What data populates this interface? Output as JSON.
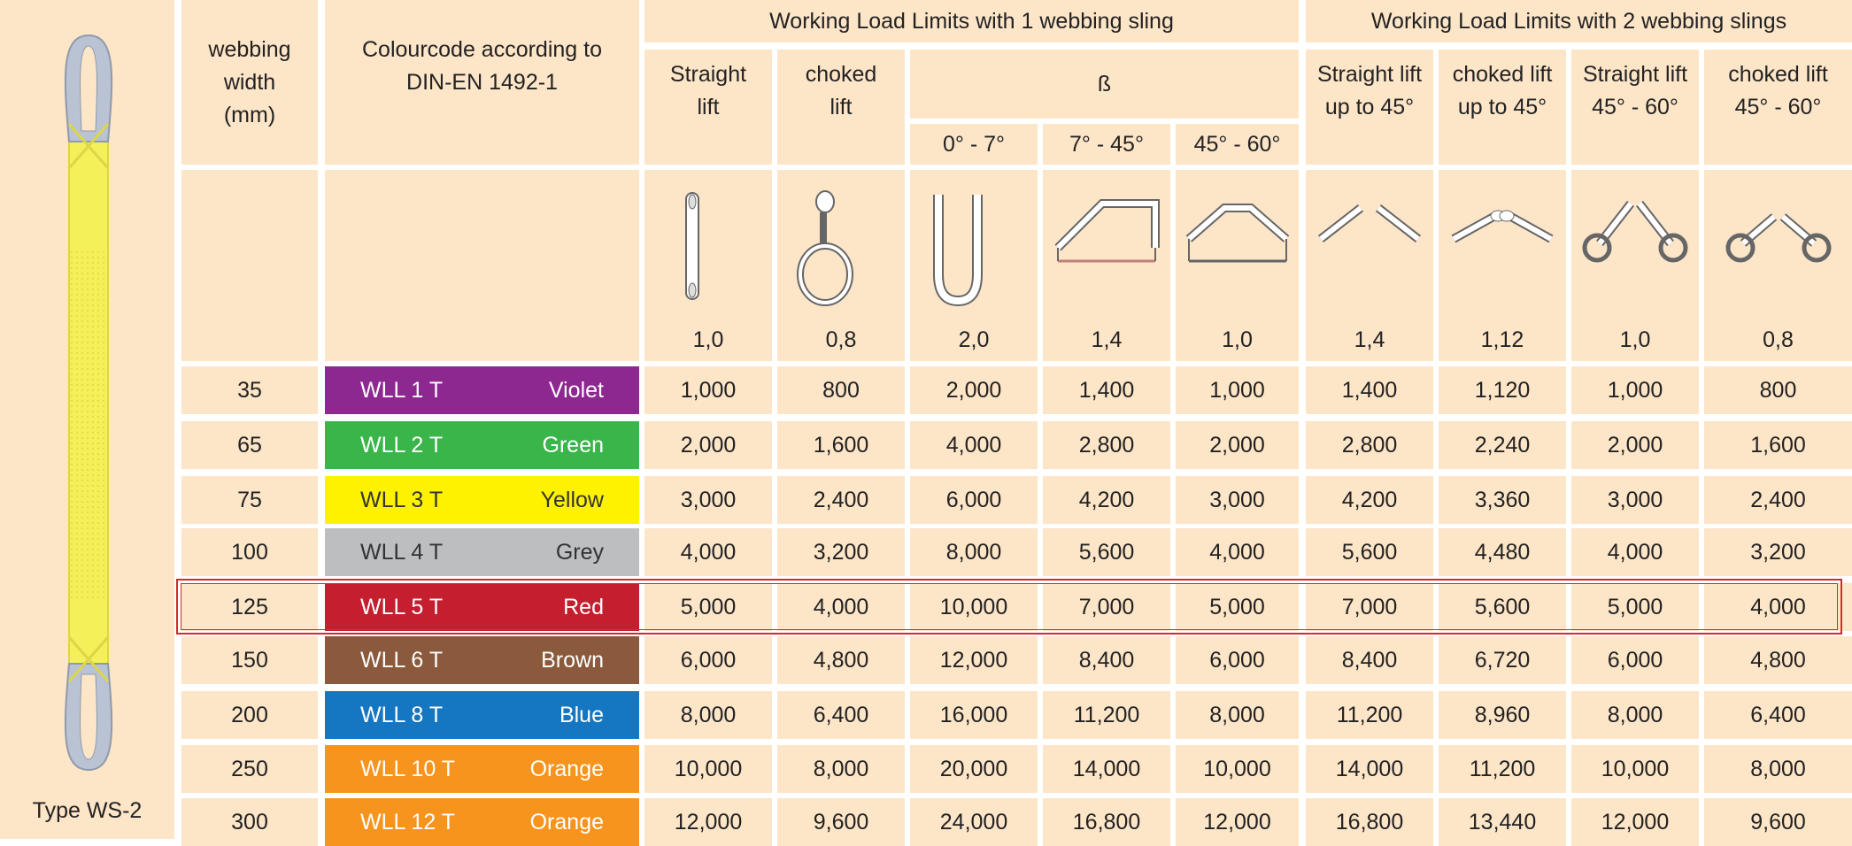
{
  "product": {
    "type_label": "Type WS-2",
    "sling_color": "#f4f05a",
    "sling_eye_color": "#b9c3d3"
  },
  "headers": {
    "webbing_width": "webbing width (mm)",
    "webbing_width_lines": [
      "webbing",
      "width",
      "(mm)"
    ],
    "colourcode_lines": [
      "Colourcode according to",
      "DIN-EN 1492-1"
    ],
    "group1": "Working Load Limits with 1 webbing sling",
    "group2": "Working Load Limits with 2 webbing slings",
    "beta": "ß",
    "straight_lift": [
      "Straight",
      "lift"
    ],
    "choked_lift": [
      "choked",
      "lift"
    ],
    "angle_0_7": "0° - 7°",
    "angle_7_45": "7° - 45°",
    "angle_45_60": "45° - 60°",
    "g2_straight_45": [
      "Straight lift",
      "up to 45°"
    ],
    "g2_choked_45": [
      "choked lift",
      "up to 45°"
    ],
    "g2_straight_45_60": [
      "Straight lift",
      "45° - 60°"
    ],
    "g2_choked_45_60": [
      "choked lift",
      "45° - 60°"
    ]
  },
  "mode_factors": [
    "1,0",
    "0,8",
    "2,0",
    "1,4",
    "1,0",
    "1,4",
    "1,12",
    "1,0",
    "0,8"
  ],
  "mode_icons": [
    "straight-lift-icon",
    "choked-lift-icon",
    "basket-vertical-icon",
    "basket-7-45-icon",
    "basket-45-60-icon",
    "two-sling-straight-icon",
    "two-sling-choked-icon",
    "two-sling-straight-wide-icon",
    "two-sling-choked-wide-icon"
  ],
  "rows": [
    {
      "width": "35",
      "wll": "WLL 1 T",
      "colour": "Violet",
      "color_hex": "#8e2891",
      "values": [
        "1,000",
        "800",
        "2,000",
        "1,400",
        "1,000",
        "1,400",
        "1,120",
        "1,000",
        "800"
      ]
    },
    {
      "width": "65",
      "wll": "WLL 2 T",
      "colour": "Green",
      "color_hex": "#3ab54a",
      "values": [
        "2,000",
        "1,600",
        "4,000",
        "2,800",
        "2,000",
        "2,800",
        "2,240",
        "2,000",
        "1,600"
      ]
    },
    {
      "width": "75",
      "wll": "WLL 3 T",
      "colour": "Yellow",
      "color_hex": "#fff200",
      "values": [
        "3,000",
        "2,400",
        "6,000",
        "4,200",
        "3,000",
        "4,200",
        "3,360",
        "3,000",
        "2,400"
      ]
    },
    {
      "width": "100",
      "wll": "WLL 4 T",
      "colour": "Grey",
      "color_hex": "#bcbec0",
      "values": [
        "4,000",
        "3,200",
        "8,000",
        "5,600",
        "4,000",
        "5,600",
        "4,480",
        "4,000",
        "3,200"
      ]
    },
    {
      "width": "125",
      "wll": "WLL 5 T",
      "colour": "Red",
      "color_hex": "#c41e2f",
      "values": [
        "5,000",
        "4,000",
        "10,000",
        "7,000",
        "5,000",
        "7,000",
        "5,600",
        "5,000",
        "4,000"
      ],
      "highlighted": true
    },
    {
      "width": "150",
      "wll": "WLL 6 T",
      "colour": "Brown",
      "color_hex": "#8b5a3c",
      "values": [
        "6,000",
        "4,800",
        "12,000",
        "8,400",
        "6,000",
        "8,400",
        "6,720",
        "6,000",
        "4,800"
      ]
    },
    {
      "width": "200",
      "wll": "WLL 8 T",
      "colour": "Blue",
      "color_hex": "#1577c1",
      "values": [
        "8,000",
        "6,400",
        "16,000",
        "11,200",
        "8,000",
        "11,200",
        "8,960",
        "8,000",
        "6,400"
      ]
    },
    {
      "width": "250",
      "wll": "WLL 10 T",
      "colour": "Orange",
      "color_hex": "#f7941d",
      "values": [
        "10,000",
        "8,000",
        "20,000",
        "14,000",
        "10,000",
        "14,000",
        "11,200",
        "10,000",
        "8,000"
      ]
    },
    {
      "width": "300",
      "wll": "WLL 12 T",
      "colour": "Orange",
      "color_hex": "#f7941d",
      "values": [
        "12,000",
        "9,600",
        "24,000",
        "16,800",
        "12,000",
        "16,800",
        "13,440",
        "12,000",
        "9,600"
      ]
    }
  ],
  "colors": {
    "cell_background": "#fde5c8",
    "grid_lines": "#ffffff",
    "highlight_border": "#d9262e"
  }
}
